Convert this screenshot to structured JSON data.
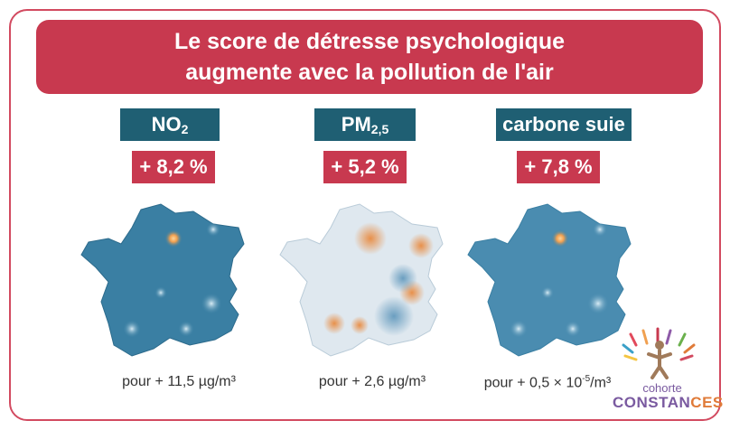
{
  "banner": {
    "line1": "Le score de détresse psychologique",
    "line2": "augmente avec la pollution de l'air"
  },
  "pollutants": [
    {
      "name": "NO",
      "sub": "2",
      "increase": "+ 8,2 %",
      "per_prefix": "pour + 11,5 µg/m³",
      "map_style": "blue-hotspots"
    },
    {
      "name": "PM",
      "sub": "2,5",
      "increase": "+ 5,2 %",
      "per_prefix": "pour + 2,6 µg/m³",
      "map_style": "pale-orange"
    },
    {
      "name": "carbone suie",
      "sub": "",
      "increase": "+ 7,8 %",
      "per_prefix": "pour + 0,5 × 10",
      "per_exp": "-5",
      "per_suffix": "/m³",
      "map_style": "blue-hotspots"
    }
  ],
  "logo": {
    "top": "cohorte",
    "bottom_a": "CONSTAN",
    "bottom_b": "CES"
  },
  "colors": {
    "accent": "#c8394f",
    "label_bg": "#1f5f73",
    "map_blue": "#3a7fa3",
    "map_orange": "#e8904a"
  }
}
